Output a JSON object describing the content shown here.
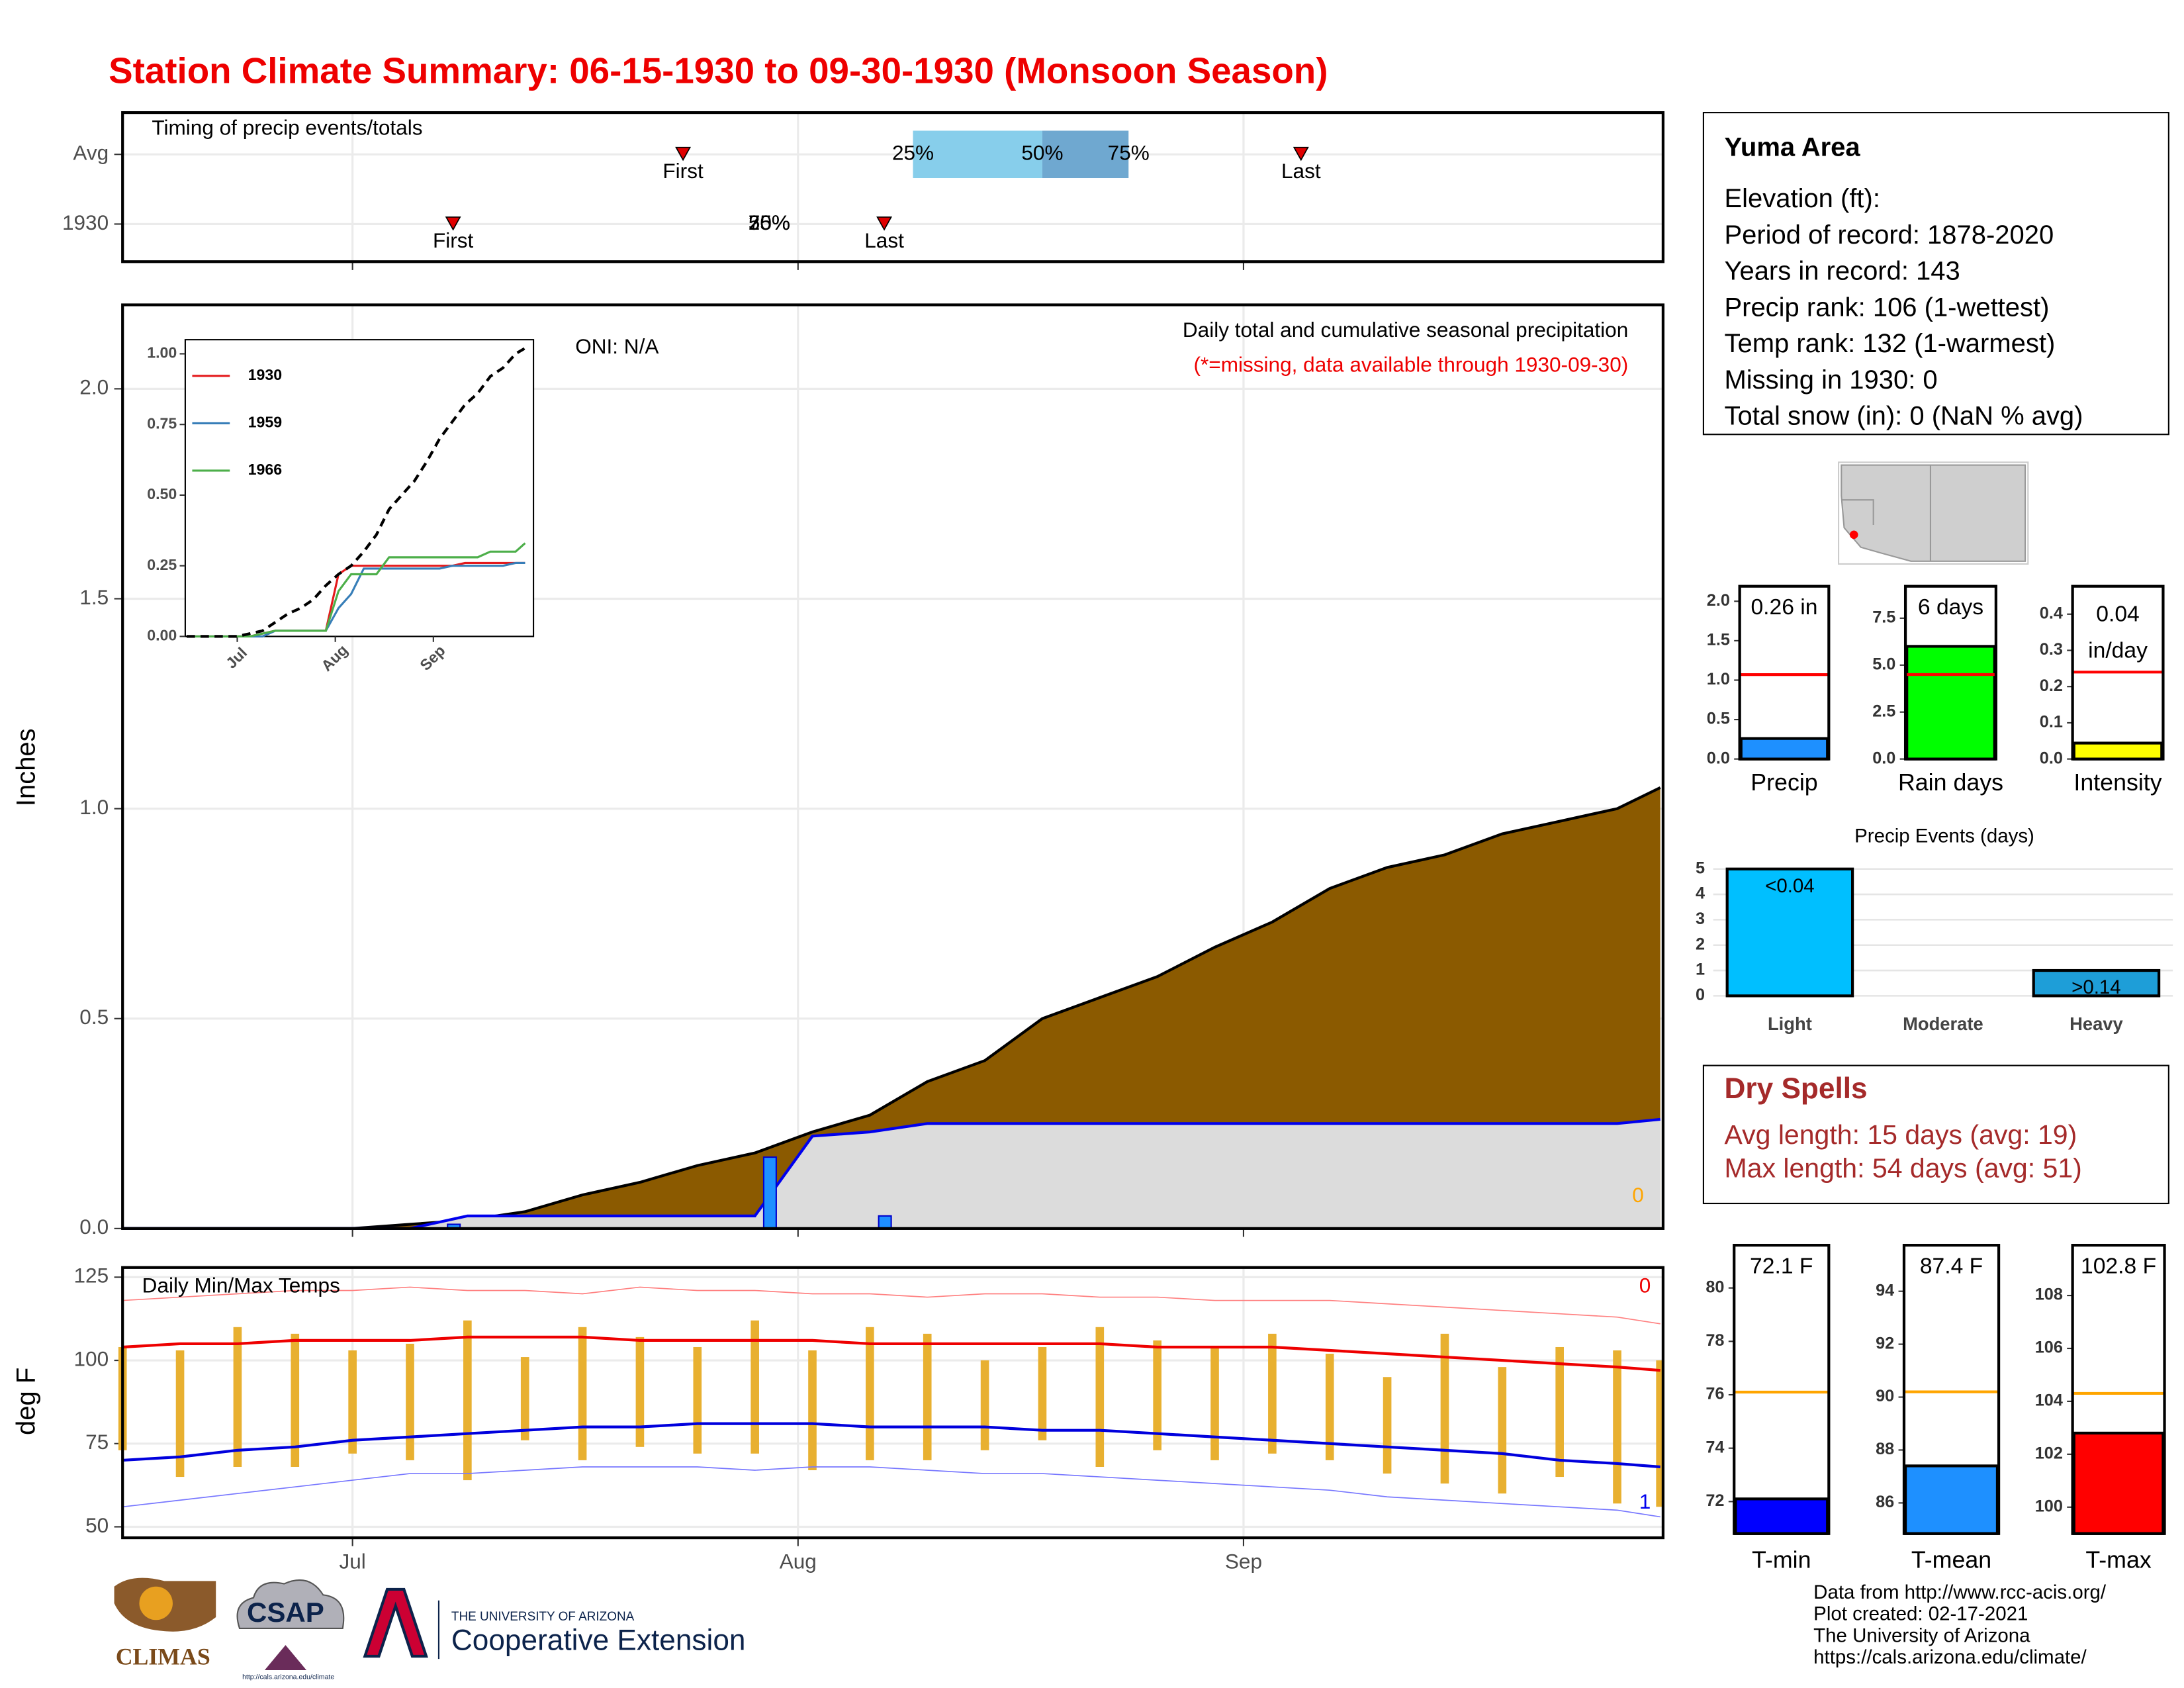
{
  "title": "Station Climate Summary: 06-15-1930 to 09-30-1930 (Monsoon Season)",
  "station": {
    "name": "Yuma Area",
    "lines": [
      "Elevation (ft):",
      "Period of record: 1878-2020",
      "Years in record: 143",
      "Precip rank: 106 (1-wettest)",
      "Temp rank: 132 (1-warmest)",
      "Missing in 1930: 0",
      "Total snow (in): 0 (NaN % avg)"
    ]
  },
  "dry_spells": {
    "title": "Dry Spells",
    "lines": [
      "Avg length: 15 days (avg: 19)",
      "Max length: 54 days (avg: 51)"
    ]
  },
  "credits": [
    "Data from http://www.rcc-acis.org/",
    "Plot created: 02-17-2021",
    "The University of Arizona",
    "https://cals.arizona.edu/climate/"
  ],
  "logos": {
    "climas": "CLIMAS",
    "csap": "CSAP",
    "csap_url": "http://cals.arizona.edu/climate",
    "university": "THE UNIVERSITY OF ARIZONA",
    "extension": "Cooperative Extension"
  },
  "chart_data": [
    {
      "type": "timeline",
      "title": "Timing of precip events/totals",
      "xlim": [
        "1930-06-15",
        "1930-09-30"
      ],
      "xticks": [
        "1930-07-01",
        "1930-08-01",
        "1930-09-01"
      ],
      "quartile_colors": [
        "#87ceeb",
        "#6fa8d0"
      ],
      "marker_color": "#e00000",
      "rows": [
        {
          "name": "Avg",
          "first": "1930-07-24",
          "first_label": "First",
          "last": "1930-09-05",
          "last_label": "Last",
          "quartiles": [
            "1930-08-09",
            "1930-08-18",
            "1930-08-24"
          ],
          "quartile_labels": [
            "25%",
            "50%",
            "75%"
          ]
        },
        {
          "name": "1930",
          "first": "1930-07-08",
          "first_label": "First",
          "last": "1930-08-07",
          "last_label": "Last",
          "quartiles": [
            "1930-07-30",
            "1930-07-30",
            "1930-07-30"
          ],
          "quartile_labels": [
            "25%",
            "50%",
            "75%"
          ]
        }
      ]
    },
    {
      "type": "area",
      "subtitle": "Daily total and cumulative seasonal precipitation",
      "note": "(*=missing, data available through 1930-09-30)",
      "oni": "ONI: N/A",
      "missing_days": 0,
      "ylabel": "Inches",
      "xlim": [
        "1930-06-15",
        "1930-09-30"
      ],
      "xticks": [
        "1930-07-01",
        "1930-08-01",
        "1930-09-01"
      ],
      "ylim": [
        0,
        2.2
      ],
      "yticks": [
        {
          "value": 0,
          "label": "0.0"
        },
        {
          "value": 0.5,
          "label": "0.5"
        },
        {
          "value": 1,
          "label": "1.0"
        },
        {
          "value": 1.5,
          "label": "1.5"
        },
        {
          "value": 2,
          "label": "2.0"
        }
      ],
      "grid": true,
      "x": [
        "1930-06-15",
        "1930-06-19",
        "1930-06-23",
        "1930-06-27",
        "1930-07-01",
        "1930-07-05",
        "1930-07-09",
        "1930-07-13",
        "1930-07-17",
        "1930-07-21",
        "1930-07-25",
        "1930-07-29",
        "1930-08-02",
        "1930-08-06",
        "1930-08-10",
        "1930-08-14",
        "1930-08-18",
        "1930-08-22",
        "1930-08-26",
        "1930-08-30",
        "1930-09-03",
        "1930-09-07",
        "1930-09-11",
        "1930-09-15",
        "1930-09-19",
        "1930-09-23",
        "1930-09-27",
        "1930-09-30"
      ],
      "series": [
        {
          "color": "#8b5a00",
          "fill": "#8b5a00",
          "values": [
            0,
            0,
            0,
            0,
            0,
            0.01,
            0.02,
            0.04,
            0.08,
            0.11,
            0.15,
            0.18,
            0.23,
            0.27,
            0.35,
            0.4,
            0.5,
            0.55,
            0.6,
            0.67,
            0.73,
            0.81,
            0.86,
            0.89,
            0.94,
            0.97,
            1.0,
            1.05
          ]
        },
        {
          "color": "#0000ee",
          "fill": "#dcdcdc",
          "values": [
            0,
            0,
            0,
            0,
            0,
            0,
            0.03,
            0.03,
            0.03,
            0.03,
            0.03,
            0.03,
            0.22,
            0.23,
            0.25,
            0.25,
            0.25,
            0.25,
            0.25,
            0.25,
            0.25,
            0.25,
            0.25,
            0.25,
            0.25,
            0.25,
            0.25,
            0.26
          ]
        }
      ],
      "daily": {
        "color": "#1e90ff",
        "x": [
          "1930-07-08",
          "1930-07-30",
          "1930-08-07"
        ],
        "values": [
          0.01,
          0.17,
          0.03
        ]
      }
    },
    {
      "type": "line",
      "xlim": [
        "1930-06-15",
        "1930-09-30"
      ],
      "xticks": [
        {
          "value": "1930-07-01",
          "label": "Jul"
        },
        {
          "value": "1930-08-01",
          "label": "Aug"
        },
        {
          "value": "1930-09-01",
          "label": "Sep"
        }
      ],
      "ylim": [
        0,
        1.05
      ],
      "yticks": [
        {
          "value": 0,
          "label": "0.00"
        },
        {
          "value": 0.25,
          "label": "0.25"
        },
        {
          "value": 0.5,
          "label": "0.50"
        },
        {
          "value": 0.75,
          "label": "0.75"
        },
        {
          "value": 1,
          "label": "1.00"
        }
      ],
      "x": [
        "1930-06-15",
        "1930-06-19",
        "1930-06-23",
        "1930-06-27",
        "1930-07-01",
        "1930-07-05",
        "1930-07-09",
        "1930-07-13",
        "1930-07-17",
        "1930-07-21",
        "1930-07-25",
        "1930-07-29",
        "1930-08-02",
        "1930-08-06",
        "1930-08-10",
        "1930-08-14",
        "1930-08-18",
        "1930-08-22",
        "1930-08-26",
        "1930-08-30",
        "1930-09-03",
        "1930-09-07",
        "1930-09-11",
        "1930-09-15",
        "1930-09-19",
        "1930-09-23",
        "1930-09-27",
        "1930-09-30"
      ],
      "reference": {
        "color": "#000000",
        "values": [
          0,
          0,
          0,
          0,
          0,
          0.01,
          0.02,
          0.05,
          0.08,
          0.1,
          0.13,
          0.18,
          0.22,
          0.25,
          0.3,
          0.36,
          0.45,
          0.5,
          0.55,
          0.62,
          0.7,
          0.76,
          0.82,
          0.86,
          0.92,
          0.95,
          1.0,
          1.02
        ]
      },
      "series": [
        {
          "name": "1930",
          "color": "#e41a1c",
          "values": [
            0,
            0,
            0,
            0,
            0,
            0,
            0.01,
            0.02,
            0.02,
            0.02,
            0.02,
            0.02,
            0.22,
            0.25,
            0.25,
            0.25,
            0.25,
            0.25,
            0.25,
            0.25,
            0.25,
            0.25,
            0.26,
            0.26,
            0.26,
            0.26,
            0.26,
            0.26
          ]
        },
        {
          "name": "1959",
          "color": "#377eb8",
          "values": [
            0,
            0,
            0,
            0,
            0,
            0,
            0,
            0.02,
            0.02,
            0.02,
            0.02,
            0.02,
            0.1,
            0.15,
            0.24,
            0.24,
            0.24,
            0.24,
            0.24,
            0.24,
            0.24,
            0.25,
            0.25,
            0.25,
            0.25,
            0.25,
            0.26,
            0.26
          ]
        },
        {
          "name": "1966",
          "color": "#4daf4a",
          "values": [
            0,
            0,
            0,
            0,
            0,
            0,
            0.01,
            0.02,
            0.02,
            0.02,
            0.02,
            0.02,
            0.16,
            0.22,
            0.22,
            0.22,
            0.28,
            0.28,
            0.28,
            0.28,
            0.28,
            0.28,
            0.28,
            0.28,
            0.3,
            0.3,
            0.3,
            0.33
          ]
        }
      ]
    },
    {
      "type": "temps",
      "title": "Daily Min/Max Temps",
      "ylabel": "deg F",
      "record_high_count": 0,
      "record_low_count": 1,
      "xlim": [
        "1930-06-15",
        "1930-09-30"
      ],
      "xticks": [
        {
          "value": "1930-07-01",
          "label": "Jul"
        },
        {
          "value": "1930-08-01",
          "label": "Aug"
        },
        {
          "value": "1930-09-01",
          "label": "Sep"
        }
      ],
      "ylim": [
        46.7,
        127.9
      ],
      "yticks": [
        50,
        75,
        100,
        125
      ],
      "grid": true,
      "x": [
        "1930-06-15",
        "1930-06-19",
        "1930-06-23",
        "1930-06-27",
        "1930-07-01",
        "1930-07-05",
        "1930-07-09",
        "1930-07-13",
        "1930-07-17",
        "1930-07-21",
        "1930-07-25",
        "1930-07-29",
        "1930-08-02",
        "1930-08-06",
        "1930-08-10",
        "1930-08-14",
        "1930-08-18",
        "1930-08-22",
        "1930-08-26",
        "1930-08-30",
        "1930-09-03",
        "1930-09-07",
        "1930-09-11",
        "1930-09-15",
        "1930-09-19",
        "1930-09-23",
        "1930-09-27",
        "1930-09-30"
      ],
      "daily": {
        "color": "#e8b030",
        "max": [
          104,
          103,
          110,
          108,
          103,
          105,
          112,
          101,
          110,
          107,
          104,
          112,
          103,
          110,
          108,
          100,
          104,
          110,
          106,
          104,
          108,
          102,
          95,
          108,
          98,
          104,
          103,
          100
        ],
        "min": [
          73,
          65,
          68,
          68,
          72,
          70,
          64,
          76,
          70,
          74,
          72,
          72,
          67,
          70,
          70,
          73,
          76,
          68,
          73,
          70,
          72,
          70,
          66,
          63,
          60,
          65,
          57,
          56
        ]
      },
      "series": [
        {
          "color": "#ff8080",
          "width": 0.8,
          "values": [
            118,
            119,
            120,
            121,
            121,
            122,
            121,
            121,
            120,
            122,
            121,
            121,
            120,
            120,
            119,
            120,
            120,
            119,
            119,
            118,
            118,
            118,
            117,
            116,
            115,
            114,
            113,
            111
          ]
        },
        {
          "color": "#ee0000",
          "width": 2,
          "values": [
            104,
            105,
            105,
            106,
            106,
            106,
            107,
            107,
            107,
            106,
            106,
            106,
            106,
            105,
            105,
            105,
            105,
            105,
            104,
            104,
            104,
            103,
            102,
            101,
            100,
            99,
            98,
            97
          ]
        },
        {
          "color": "#0000dd",
          "width": 2,
          "values": [
            70,
            71,
            73,
            74,
            76,
            77,
            78,
            79,
            80,
            80,
            81,
            81,
            81,
            80,
            80,
            80,
            79,
            79,
            78,
            77,
            76,
            75,
            74,
            73,
            72,
            70,
            69,
            68
          ]
        },
        {
          "color": "#7777ff",
          "width": 0.8,
          "values": [
            56,
            58,
            60,
            62,
            64,
            66,
            66,
            67,
            68,
            68,
            68,
            67,
            68,
            68,
            67,
            66,
            66,
            65,
            64,
            63,
            62,
            61,
            59,
            58,
            57,
            56,
            55,
            53
          ]
        }
      ]
    },
    {
      "type": "gauge",
      "xlabel": "Precip",
      "value": 0.26,
      "value_label": "0.26 in",
      "reference": 1.07,
      "color": "#1e90ff",
      "reference_color": "#ff0000",
      "ylim": [
        0,
        2.19
      ],
      "yticks": [
        {
          "value": 0,
          "label": "0.0"
        },
        {
          "value": 0.5,
          "label": "0.5"
        },
        {
          "value": 1,
          "label": "1.0"
        },
        {
          "value": 1.5,
          "label": "1.5"
        },
        {
          "value": 2,
          "label": "2.0"
        }
      ]
    },
    {
      "type": "gauge",
      "xlabel": "Rain days",
      "value": 6,
      "value_label": "6 days",
      "reference": 4.5,
      "color": "#00ff00",
      "reference_color": "#ff0000",
      "ylim": [
        0,
        9.2
      ],
      "yticks": [
        {
          "value": 0,
          "label": "0.0"
        },
        2.5,
        {
          "value": 5,
          "label": "5.0"
        },
        7.5
      ]
    },
    {
      "type": "gauge",
      "xlabel": "Intensity",
      "value": 0.044,
      "value_label": "0.04",
      "value_sublabel": "in/day",
      "reference": 0.24,
      "color": "#ffff00",
      "reference_color": "#ff0000",
      "ylim": [
        0,
        0.477
      ],
      "yticks": [
        {
          "value": 0,
          "label": "0.0"
        },
        0.1,
        0.2,
        0.3,
        0.4
      ]
    },
    {
      "type": "gauge",
      "xlabel": "T-min",
      "value": 72.1,
      "value_label": "72.1 F",
      "reference": 76.1,
      "color": "#0000ff",
      "reference_color": "#ffa500",
      "ylim": [
        70.8,
        81.6
      ],
      "yticks": [
        72,
        74,
        76,
        78,
        80
      ]
    },
    {
      "type": "gauge",
      "xlabel": "T-mean",
      "value": 87.4,
      "value_label": "87.4 F",
      "reference": 90.2,
      "color": "#1e90ff",
      "reference_color": "#ffa500",
      "ylim": [
        84.84,
        95.74
      ],
      "yticks": [
        86,
        88,
        90,
        92,
        94
      ]
    },
    {
      "type": "gauge",
      "xlabel": "T-max",
      "value": 102.8,
      "value_label": "102.8 F",
      "reference": 104.3,
      "color": "#ff0000",
      "reference_color": "#ffa500",
      "ylim": [
        99,
        109.9
      ],
      "yticks": [
        100,
        102,
        104,
        106,
        108
      ]
    },
    {
      "type": "bar",
      "title": "Precip Events (days)",
      "categories": [
        "Light",
        "Moderate",
        "Heavy"
      ],
      "values": [
        5,
        0,
        1
      ],
      "bar_labels": [
        "<0.04",
        null,
        ">0.14"
      ],
      "colors": [
        "#00bfff",
        "#1a5f9e",
        "#1e9ed8"
      ],
      "ylim": [
        -0.22,
        5.6
      ],
      "yticks": [
        0,
        1,
        2,
        3,
        4,
        5
      ],
      "grid": true
    }
  ]
}
